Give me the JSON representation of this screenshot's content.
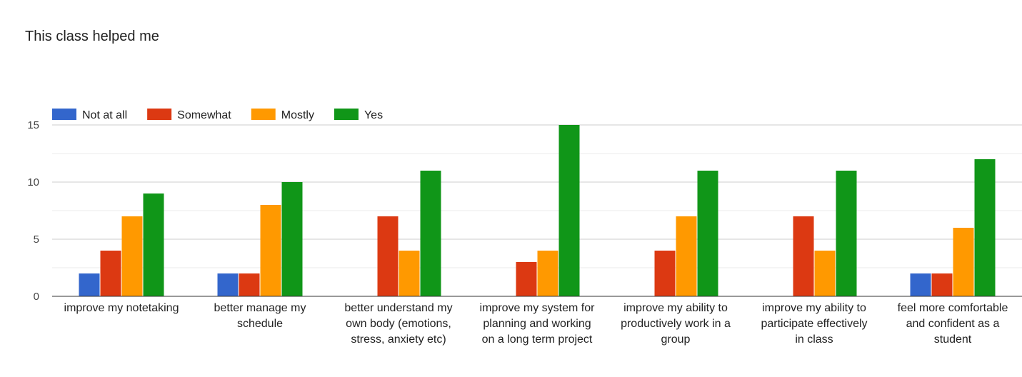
{
  "chart_data": {
    "type": "bar",
    "title": "This class helped me",
    "xlabel": "",
    "ylabel": "",
    "ylim": [
      0,
      15
    ],
    "yticks": [
      0,
      5,
      10,
      15
    ],
    "grid": true,
    "legend_position": "top-left",
    "categories": [
      [
        "improve my notetaking"
      ],
      [
        "better manage my",
        "schedule"
      ],
      [
        "better understand my",
        "own body (emotions,",
        "stress, anxiety etc)"
      ],
      [
        "improve my system for",
        "planning and working",
        "on a long term project"
      ],
      [
        "improve my ability to",
        "productively work in a",
        "group"
      ],
      [
        "improve my ability to",
        "participate effectively",
        "in class"
      ],
      [
        "feel more comfortable",
        "and confident as a",
        "student"
      ]
    ],
    "series": [
      {
        "name": "Not at all",
        "color": "#3366cc",
        "values": [
          2,
          2,
          0,
          0,
          0,
          0,
          2
        ]
      },
      {
        "name": "Somewhat",
        "color": "#dc3912",
        "values": [
          4,
          2,
          7,
          3,
          4,
          7,
          2
        ]
      },
      {
        "name": "Mostly",
        "color": "#ff9900",
        "values": [
          7,
          8,
          4,
          4,
          7,
          4,
          6
        ]
      },
      {
        "name": "Yes",
        "color": "#109618",
        "values": [
          9,
          10,
          11,
          15,
          11,
          11,
          12
        ]
      }
    ]
  }
}
